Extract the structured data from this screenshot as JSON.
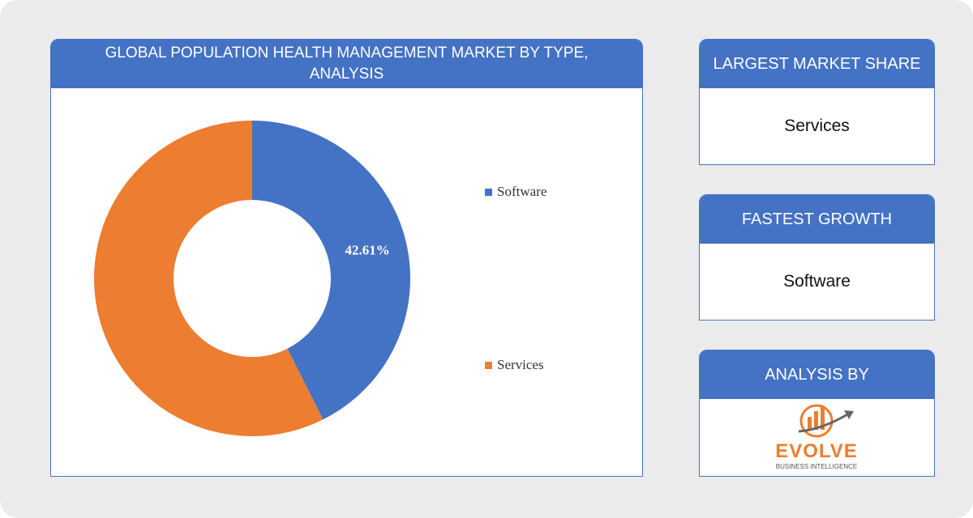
{
  "chart_data": {
    "type": "pie",
    "title": "GLOBAL POPULATION HEALTH MANAGEMENT MARKET BY TYPE, ANALYSIS",
    "categories": [
      "Software",
      "Services"
    ],
    "values": [
      42.61,
      57.39
    ],
    "value_labels": [
      "42.61%",
      null
    ],
    "colors": [
      "#4472c4",
      "#ed7d31"
    ],
    "donut": true
  },
  "cards": [
    {
      "title": "LARGEST MARKET SHARE",
      "value": "Services"
    },
    {
      "title": "FASTEST GROWTH",
      "value": "Software"
    },
    {
      "title": "ANALYSIS BY"
    }
  ],
  "logo": {
    "name": "EVOLVE",
    "tagline": "BUSINESS INTELLIGENCE"
  }
}
